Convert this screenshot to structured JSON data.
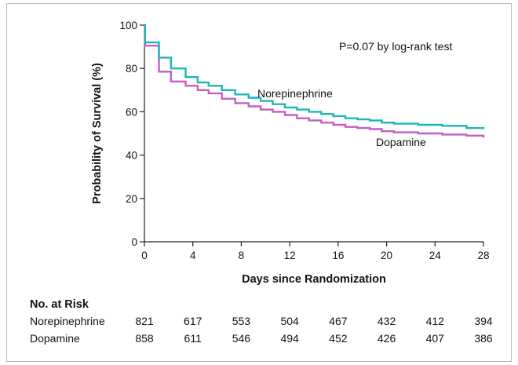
{
  "chart_data": {
    "type": "line",
    "step": true,
    "xlabel": "Days since Randomization",
    "ylabel": "Probability of Survival (%)",
    "xlim": [
      0,
      28
    ],
    "ylim": [
      0,
      100
    ],
    "x_ticks": [
      0,
      4,
      8,
      12,
      16,
      20,
      24,
      28
    ],
    "y_ticks": [
      0,
      20,
      40,
      60,
      80,
      100
    ],
    "annotation": "P=0.07 by log-rank test",
    "colors": {
      "norepinephrine": "#1fb5b5",
      "dopamine": "#c25fc2"
    },
    "series": [
      {
        "name": "Norepinephrine",
        "x": [
          0,
          0.05,
          1.2,
          2.2,
          3.4,
          4.4,
          5.3,
          6.4,
          7.5,
          8.6,
          9.6,
          10.6,
          11.6,
          12.6,
          13.6,
          14.6,
          15.6,
          16.6,
          17.6,
          18.6,
          19.6,
          20.6,
          22.6,
          24.6,
          26.6,
          28
        ],
        "y": [
          100,
          92,
          85,
          80,
          76,
          73.5,
          72,
          70,
          68,
          66.5,
          65,
          63.5,
          62,
          61,
          60,
          59,
          58,
          57,
          56.5,
          56,
          55,
          54.5,
          54,
          53.5,
          52.5,
          52
        ]
      },
      {
        "name": "Dopamine",
        "x": [
          0,
          0.05,
          1.2,
          2.2,
          3.4,
          4.4,
          5.3,
          6.4,
          7.5,
          8.6,
          9.6,
          10.6,
          11.6,
          12.6,
          13.6,
          14.6,
          15.6,
          16.6,
          17.6,
          18.6,
          19.6,
          20.6,
          22.6,
          24.6,
          26.6,
          28
        ],
        "y": [
          100,
          90.5,
          78.5,
          74,
          72,
          70,
          68.5,
          66,
          64,
          62.5,
          61,
          60,
          58.5,
          57,
          56,
          55,
          54,
          53,
          52.5,
          52,
          51,
          50.5,
          50,
          49.5,
          49,
          48
        ]
      }
    ]
  },
  "risk_table": {
    "title": "No. at Risk",
    "rows": [
      {
        "label": "Norepinephrine",
        "values": [
          "821",
          "617",
          "553",
          "504",
          "467",
          "432",
          "412",
          "394"
        ]
      },
      {
        "label": "Dopamine",
        "values": [
          "858",
          "611",
          "546",
          "494",
          "452",
          "426",
          "407",
          "386"
        ]
      }
    ]
  }
}
